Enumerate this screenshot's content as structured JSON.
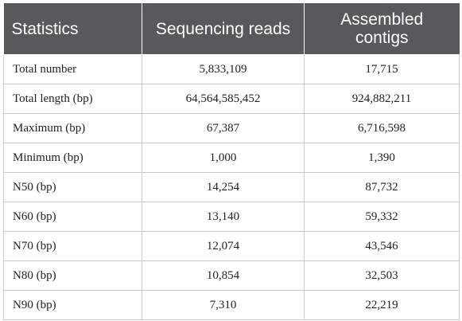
{
  "table": {
    "headers": [
      "Statistics",
      "Sequencing reads",
      "Assembled contigs"
    ],
    "rows": [
      [
        "Total number",
        "5,833,109",
        "17,715"
      ],
      [
        "Total length (bp)",
        "64,564,585,452",
        "924,882,211"
      ],
      [
        "Maximum (bp)",
        "67,387",
        "6,716,598"
      ],
      [
        "Minimum (bp)",
        "1,000",
        "1,390"
      ],
      [
        "N50 (bp)",
        "14,254",
        "87,732"
      ],
      [
        "N60 (bp)",
        "13,140",
        "59,332"
      ],
      [
        "N70 (bp)",
        "12,074",
        "43,546"
      ],
      [
        "N80 (bp)",
        "10,854",
        "32,503"
      ],
      [
        "N90 (bp)",
        "7,310",
        "22,219"
      ]
    ]
  },
  "colors": {
    "header_bg": "#58595b",
    "header_text": "#ffffff",
    "grid": "#c9c9c9",
    "body_text": "#231f20"
  }
}
